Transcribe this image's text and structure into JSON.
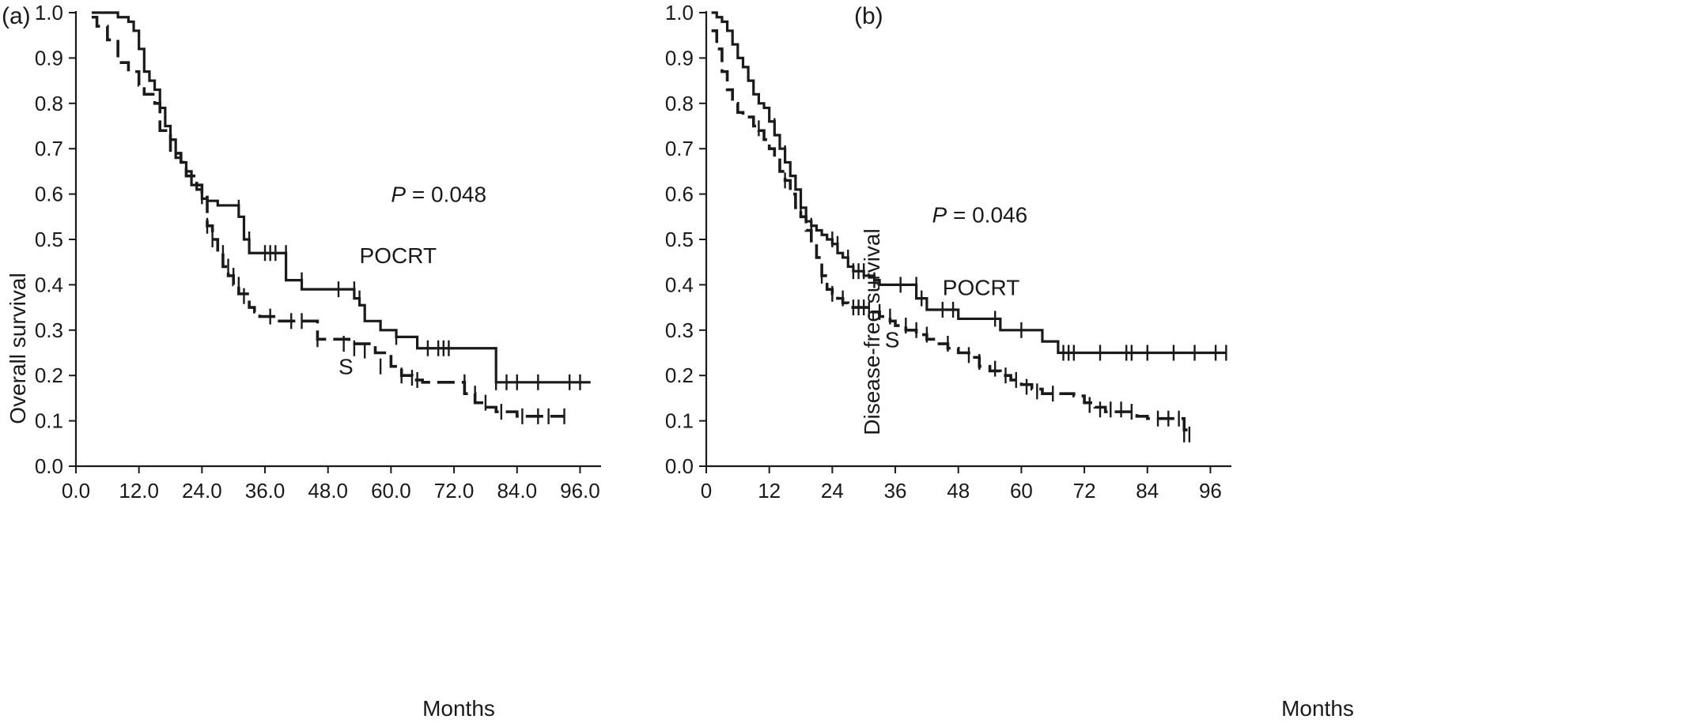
{
  "chart_data": [
    {
      "type": "line",
      "panel_label": "(a)",
      "xlabel": "Months",
      "ylabel": "Overall survival",
      "xlim": [
        0,
        100
      ],
      "ylim": [
        0,
        1.0
      ],
      "xticks": [
        0,
        12,
        24,
        36,
        48,
        60,
        72,
        84,
        96
      ],
      "xtick_labels": [
        "0.0",
        "12.0",
        "24.0",
        "36.0",
        "48.0",
        "60.0",
        "72.0",
        "84.0",
        "96.0"
      ],
      "yticks": [
        0,
        0.1,
        0.2,
        0.3,
        0.4,
        0.5,
        0.6,
        0.7,
        0.8,
        0.9,
        1.0
      ],
      "ytick_labels": [
        "0.0",
        "0.1",
        "0.2",
        "0.3",
        "0.4",
        "0.5",
        "0.6",
        "0.7",
        "0.8",
        "0.9",
        "1.0"
      ],
      "annotation": {
        "p_symbol": "P",
        "p_text": " = 0.048",
        "x": 60,
        "y": 0.6
      },
      "series": [
        {
          "name": "POCRT",
          "style": "solid",
          "label_pos": {
            "x": 54,
            "y": 0.465
          },
          "x": [
            3,
            8,
            10,
            11,
            12,
            13,
            14,
            15,
            16,
            17,
            18,
            19,
            20,
            21,
            22,
            23,
            24,
            25,
            27,
            31,
            32,
            33,
            34,
            40,
            43,
            53,
            54,
            55,
            58,
            61,
            65,
            66,
            80,
            81,
            98
          ],
          "y": [
            1.0,
            0.99,
            0.98,
            0.96,
            0.92,
            0.87,
            0.85,
            0.83,
            0.79,
            0.75,
            0.72,
            0.68,
            0.67,
            0.65,
            0.62,
            0.61,
            0.59,
            0.585,
            0.575,
            0.55,
            0.5,
            0.47,
            0.47,
            0.41,
            0.39,
            0.37,
            0.355,
            0.32,
            0.3,
            0.285,
            0.26,
            0.26,
            0.185,
            0.185,
            0.185
          ],
          "censored": {
            "x": [
              31,
              33,
              36,
              37,
              38,
              40,
              43,
              50,
              53,
              54,
              61,
              67,
              69,
              70,
              71,
              80,
              82,
              84,
              88,
              94,
              96
            ],
            "y": [
              0.57,
              0.5,
              0.47,
              0.47,
              0.47,
              0.47,
              0.41,
              0.39,
              0.39,
              0.37,
              0.285,
              0.26,
              0.26,
              0.26,
              0.26,
              0.185,
              0.185,
              0.185,
              0.185,
              0.185,
              0.185
            ]
          }
        },
        {
          "name": "S",
          "style": "dashed",
          "label_pos": {
            "x": 50,
            "y": 0.22
          },
          "x": [
            3,
            4,
            6,
            8,
            10,
            12,
            13,
            15,
            16,
            18,
            20,
            21,
            23,
            24,
            25,
            26,
            27,
            28,
            29,
            30,
            31,
            33,
            34,
            35,
            36,
            38,
            40,
            46,
            52,
            57,
            60,
            62,
            64,
            66,
            70,
            72,
            74,
            76,
            78,
            80,
            84,
            93
          ],
          "y": [
            0.99,
            0.97,
            0.94,
            0.89,
            0.87,
            0.84,
            0.82,
            0.8,
            0.74,
            0.69,
            0.67,
            0.64,
            0.62,
            0.6,
            0.53,
            0.5,
            0.47,
            0.44,
            0.42,
            0.4,
            0.38,
            0.35,
            0.34,
            0.33,
            0.33,
            0.32,
            0.32,
            0.28,
            0.27,
            0.25,
            0.22,
            0.2,
            0.19,
            0.185,
            0.185,
            0.185,
            0.16,
            0.14,
            0.13,
            0.12,
            0.11,
            0.11
          ],
          "censored": {
            "x": [
              24,
              25,
              26,
              28,
              29,
              30,
              31,
              32,
              37,
              41,
              43,
              46,
              51,
              53,
              55,
              58,
              62,
              64,
              65,
              74,
              76,
              78,
              81,
              85,
              88,
              90,
              93
            ],
            "y": [
              0.595,
              0.53,
              0.5,
              0.47,
              0.44,
              0.42,
              0.4,
              0.375,
              0.33,
              0.32,
              0.32,
              0.28,
              0.27,
              0.26,
              0.255,
              0.22,
              0.2,
              0.195,
              0.19,
              0.185,
              0.16,
              0.14,
              0.12,
              0.11,
              0.11,
              0.11,
              0.11
            ]
          }
        }
      ]
    },
    {
      "type": "line",
      "panel_label": "(b)",
      "xlabel": "Months",
      "ylabel": "Disease-free survival",
      "xlim": [
        0,
        100
      ],
      "ylim": [
        0,
        1.0
      ],
      "xticks": [
        0,
        12,
        24,
        36,
        48,
        60,
        72,
        84,
        96
      ],
      "xtick_labels": [
        "0",
        "12",
        "24",
        "36",
        "48",
        "60",
        "72",
        "84",
        "96"
      ],
      "yticks": [
        0,
        0.1,
        0.2,
        0.3,
        0.4,
        0.5,
        0.6,
        0.7,
        0.8,
        0.9,
        1.0
      ],
      "ytick_labels": [
        "0.0",
        "0.1",
        "0.2",
        "0.3",
        "0.4",
        "0.5",
        "0.6",
        "0.7",
        "0.8",
        "0.9",
        "1.0"
      ],
      "annotation": {
        "p_symbol": "P",
        "p_text": " = 0.046",
        "x": 43,
        "y": 0.555
      },
      "series": [
        {
          "name": "POCRT",
          "style": "solid",
          "label_pos": {
            "x": 45,
            "y": 0.395
          },
          "x": [
            1,
            2,
            3,
            4,
            5,
            6,
            7,
            8,
            9,
            10,
            11,
            12,
            13,
            14,
            15,
            16,
            17,
            18,
            19,
            20,
            21,
            22,
            23,
            24,
            25,
            26,
            27,
            28,
            30,
            32,
            33,
            35,
            40,
            42,
            45,
            48,
            53,
            56,
            64,
            67,
            99
          ],
          "y": [
            1.0,
            0.99,
            0.98,
            0.96,
            0.93,
            0.9,
            0.88,
            0.85,
            0.82,
            0.8,
            0.79,
            0.76,
            0.73,
            0.7,
            0.67,
            0.64,
            0.61,
            0.57,
            0.54,
            0.53,
            0.52,
            0.51,
            0.5,
            0.49,
            0.47,
            0.46,
            0.44,
            0.43,
            0.42,
            0.41,
            0.4,
            0.4,
            0.37,
            0.345,
            0.345,
            0.325,
            0.325,
            0.3,
            0.275,
            0.25,
            0.25
          ],
          "censored": {
            "x": [
              13,
              15,
              20,
              24,
              25,
              27,
              28,
              29,
              30,
              32,
              37,
              40,
              41,
              45,
              47,
              55,
              60,
              68,
              69,
              70,
              75,
              80,
              81,
              84,
              89,
              93,
              97,
              99
            ],
            "y": [
              0.75,
              0.69,
              0.53,
              0.5,
              0.49,
              0.46,
              0.43,
              0.43,
              0.43,
              0.41,
              0.4,
              0.4,
              0.37,
              0.345,
              0.345,
              0.325,
              0.3,
              0.25,
              0.25,
              0.25,
              0.25,
              0.25,
              0.25,
              0.25,
              0.25,
              0.25,
              0.25,
              0.25
            ]
          }
        },
        {
          "name": "S",
          "style": "dashed",
          "label_pos": {
            "x": 34,
            "y": 0.28
          },
          "x": [
            1,
            2,
            3,
            4,
            5,
            6,
            7,
            9,
            10,
            11,
            12,
            13,
            14,
            15,
            16,
            17,
            18,
            19,
            20,
            21,
            22,
            23,
            24,
            25,
            26,
            27,
            29,
            31,
            33,
            35,
            36,
            38,
            40,
            42,
            44,
            46,
            48,
            50,
            52,
            54,
            56,
            58,
            60,
            62,
            64,
            66,
            70,
            72,
            74,
            76,
            80,
            82,
            84,
            90,
            91,
            92
          ],
          "y": [
            0.96,
            0.92,
            0.87,
            0.83,
            0.8,
            0.78,
            0.77,
            0.75,
            0.74,
            0.72,
            0.7,
            0.68,
            0.65,
            0.63,
            0.6,
            0.57,
            0.55,
            0.52,
            0.49,
            0.46,
            0.42,
            0.39,
            0.38,
            0.37,
            0.36,
            0.35,
            0.35,
            0.34,
            0.33,
            0.32,
            0.31,
            0.3,
            0.29,
            0.28,
            0.27,
            0.26,
            0.25,
            0.24,
            0.22,
            0.21,
            0.2,
            0.19,
            0.18,
            0.17,
            0.16,
            0.16,
            0.155,
            0.14,
            0.13,
            0.12,
            0.12,
            0.11,
            0.105,
            0.105,
            0.08,
            0.07
          ],
          "censored": {
            "x": [
              10,
              15,
              18,
              22,
              24,
              26,
              28,
              29,
              30,
              31,
              33,
              35,
              38,
              40,
              42,
              46,
              50,
              52,
              55,
              57,
              59,
              61,
              63,
              66,
              73,
              75,
              77,
              79,
              81,
              86,
              88,
              90,
              91,
              92
            ],
            "y": [
              0.745,
              0.63,
              0.565,
              0.42,
              0.38,
              0.37,
              0.35,
              0.35,
              0.35,
              0.345,
              0.34,
              0.33,
              0.31,
              0.3,
              0.29,
              0.27,
              0.245,
              0.23,
              0.215,
              0.2,
              0.19,
              0.175,
              0.165,
              0.16,
              0.135,
              0.125,
              0.125,
              0.125,
              0.12,
              0.105,
              0.105,
              0.105,
              0.07,
              0.07
            ]
          }
        }
      ]
    }
  ]
}
